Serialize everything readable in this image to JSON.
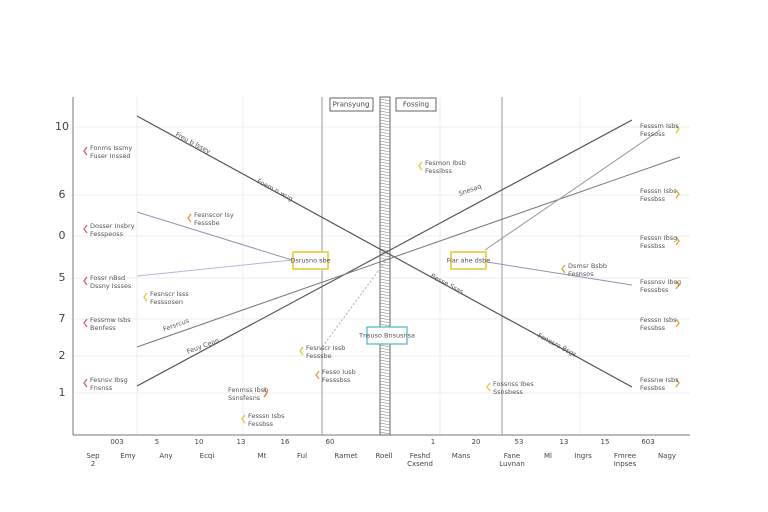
{
  "header": {
    "boxes": [
      "Pransyung",
      "Fossing"
    ]
  },
  "y_labels": [
    "10",
    "6",
    "0",
    "5",
    "7",
    "2",
    "1"
  ],
  "x_numbers": [
    "003",
    "5",
    "10",
    "13",
    "16",
    "60",
    "1",
    "20",
    "53",
    "13",
    "15",
    "603"
  ],
  "x_labels": [
    "Sep 2",
    "Emy",
    "Any",
    "Ecqi",
    "Mt",
    "Ful",
    "Rarnet",
    "Roell",
    "Feshd Cxsend",
    "Mans",
    "Fane Luvnan",
    "Ml",
    "Ingrs",
    "Fmree Inpses",
    "Nagy"
  ],
  "callouts": [
    "Dsrusno sbe",
    "Fiar ahe dsbe",
    "Tnsuso Bnsusnsa"
  ],
  "line_labels": [
    "Freu b lssey",
    "Foem n wug",
    "Snesaq",
    "Fersrcus",
    "Feuy Ceon",
    "Besse Ssas",
    "Fenesro Bsgs"
  ],
  "notes": [
    {
      "lines": [
        "Fonms Issmy",
        "Fuser Inssed"
      ]
    },
    {
      "lines": [
        "Dosser Insbry",
        "Fesspeoss"
      ]
    },
    {
      "lines": [
        "Fossr nBsd",
        "Dssny Issses"
      ]
    },
    {
      "lines": [
        "Fessmw Isbs",
        "Benfess"
      ]
    },
    {
      "lines": [
        "Fesnsv Ibsg",
        "Fnsnss"
      ]
    },
    {
      "lines": [
        "Fesnscor Isy",
        "Fesssbe"
      ]
    },
    {
      "lines": [
        "Fesnscr Isss",
        "Fesssosen"
      ]
    },
    {
      "lines": [
        "Fesmon Ibsb",
        "Fessibss"
      ]
    },
    {
      "lines": [
        "Dsmsr Bsbb",
        "Fesnsos"
      ]
    },
    {
      "lines": [
        "Fesnscr Issb",
        "Fesssbe"
      ]
    },
    {
      "lines": [
        "Fesso Iusb",
        "Fesssbss"
      ]
    },
    {
      "lines": [
        "Fenmss Ibsb",
        "Ssnsfesns"
      ]
    },
    {
      "lines": [
        "Fesssn Isbs",
        "Fessbss"
      ]
    },
    {
      "lines": [
        "Fossnss Ibes",
        "Ssnsbess"
      ]
    },
    {
      "lines": [
        "Fesssm Isbs",
        "Fessoss"
      ]
    },
    {
      "lines": [
        "Fesssn Isbs",
        "Fessbss"
      ]
    },
    {
      "lines": [
        "Fessnsv Ibsg",
        "Fesssbss"
      ]
    },
    {
      "lines": [
        "Fesssn Isbs",
        "Fessbss"
      ]
    },
    {
      "lines": [
        "Fessnw Isbs",
        "Fessbss"
      ]
    },
    {
      "lines": [
        "Fesssn Ibsg",
        "Fessbss"
      ]
    }
  ]
}
